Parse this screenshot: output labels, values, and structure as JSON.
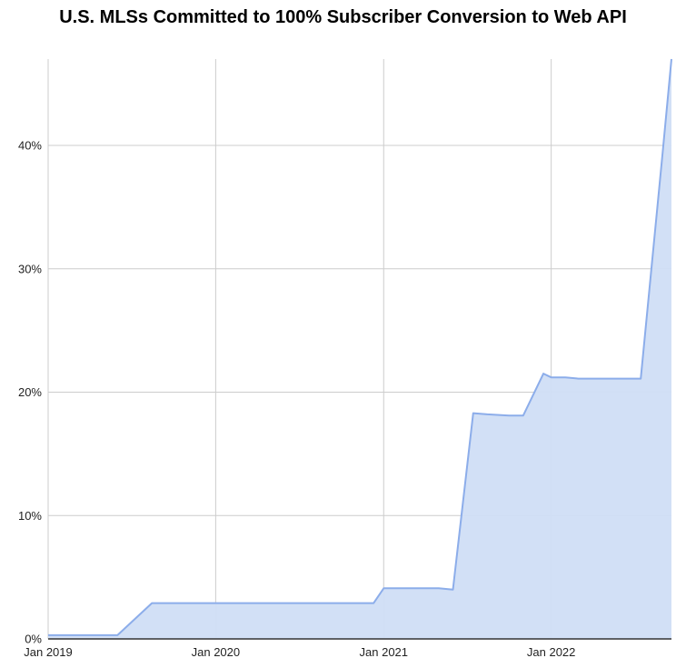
{
  "chart_data": {
    "type": "area",
    "title": "U.S. MLSs Committed to 100% Subscriber Conversion to Web API",
    "xlabel": "",
    "ylabel": "",
    "xlim": [
      "2019-01-01",
      "2022-09-20"
    ],
    "ylim": [
      0,
      47
    ],
    "x_ticks": [
      "2019-01-01",
      "2020-01-01",
      "2021-01-01",
      "2022-01-01"
    ],
    "x_tick_labels": [
      "Jan 2019",
      "Jan 2020",
      "Jan 2021",
      "Jan 2022"
    ],
    "y_ticks": [
      0,
      10,
      20,
      30,
      40
    ],
    "y_tick_labels": [
      "0%",
      "10%",
      "20%",
      "30%",
      "40%"
    ],
    "grid": true,
    "legend": "none",
    "colors": {
      "line": "#8cadea",
      "fill": "#d0def5",
      "grid": "#cccccc",
      "baseline": "#333333"
    },
    "series": [
      {
        "x": [
          "2019-01-01",
          "2019-06-01",
          "2019-08-15",
          "2020-05-01",
          "2020-12-10",
          "2021-01-01",
          "2021-05-01",
          "2021-06-01",
          "2021-07-15",
          "2021-08-15",
          "2021-10-01",
          "2021-11-01",
          "2021-12-15",
          "2022-01-01",
          "2022-02-01",
          "2022-03-01",
          "2022-04-01",
          "2022-05-01",
          "2022-06-01",
          "2022-07-01",
          "2022-07-15",
          "2022-09-01",
          "2022-09-20"
        ],
        "y": [
          0.3,
          0.3,
          2.9,
          2.9,
          2.9,
          4.1,
          4.1,
          4.0,
          18.3,
          18.2,
          18.1,
          18.1,
          21.5,
          21.2,
          21.2,
          21.1,
          21.1,
          21.1,
          21.1,
          21.1,
          21.1,
          39.5,
          47.0
        ]
      }
    ]
  }
}
